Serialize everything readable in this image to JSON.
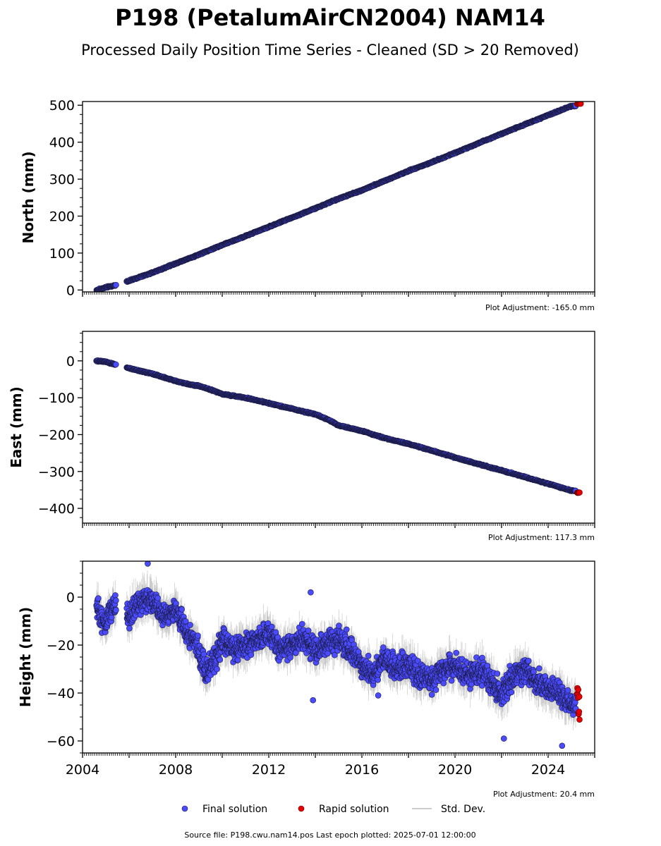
{
  "title": "P198 (PetalumAirCN2004) NAM14",
  "subtitle": "Processed Daily Position Time Series - Cleaned (SD > 20 Removed)",
  "footer": "Source file: P198.cwu.nam14.pos  Last epoch plotted: 2025-07-01 12:00:00",
  "legend": {
    "final_label": "Final solution",
    "rapid_label": "Rapid solution",
    "sd_label": "Std. Dev."
  },
  "colors": {
    "final": "#4a4aff",
    "rapid": "#e60000",
    "std_dev": "#bbbbbb",
    "marker_edge": "#1a1a40"
  },
  "chart_data": [
    {
      "type": "scatter",
      "ylabel": "North (mm)",
      "xlim": [
        2004.0,
        2026.0
      ],
      "ylim": [
        -5,
        510
      ],
      "yticks": [
        0,
        100,
        200,
        300,
        400,
        500
      ],
      "ytick_labels": [
        "0",
        "100",
        "200",
        "300",
        "400",
        "500"
      ],
      "xticks": [
        2004,
        2008,
        2012,
        2016,
        2020,
        2024
      ],
      "xtick_labels": [],
      "plot_adjustment": "Plot Adjustment: -165.0 mm",
      "series": [
        {
          "kind": "final",
          "x": [
            2004.6,
            2004.8,
            2005.0,
            2005.3,
            2006.0,
            2007.0,
            2008.0,
            2009.0,
            2010.0,
            2011.0,
            2012.0,
            2013.0,
            2014.0,
            2015.0,
            2016.0,
            2017.0,
            2018.0,
            2019.0,
            2020.0,
            2021.0,
            2022.0,
            2023.0,
            2024.0,
            2025.0
          ],
          "y": [
            0,
            3,
            7,
            11,
            25,
            47,
            72,
            96,
            122,
            146,
            171,
            196,
            221,
            247,
            270,
            296,
            322,
            346,
            371,
            397,
            423,
            448,
            473,
            498
          ]
        },
        {
          "kind": "rapid",
          "x": [
            2025.25,
            2025.32,
            2025.4
          ],
          "y": [
            503,
            505,
            504
          ]
        }
      ]
    },
    {
      "type": "scatter",
      "ylabel": "East (mm)",
      "xlim": [
        2004.0,
        2026.0
      ],
      "ylim": [
        -440,
        80
      ],
      "yticks": [
        0,
        -100,
        -200,
        -300,
        -400
      ],
      "ytick_labels": [
        "0",
        "−100",
        "−200",
        "−300",
        "−400"
      ],
      "xticks": [
        2004,
        2008,
        2012,
        2016,
        2020,
        2024
      ],
      "xtick_labels": [],
      "plot_adjustment": "Plot Adjustment: 117.3 mm",
      "series": [
        {
          "kind": "final",
          "x": [
            2004.6,
            2005.0,
            2005.3,
            2006.0,
            2007.0,
            2008.0,
            2008.6,
            2009.0,
            2009.6,
            2010.0,
            2011.0,
            2012.0,
            2013.0,
            2014.0,
            2014.5,
            2015.0,
            2016.0,
            2017.0,
            2018.0,
            2019.0,
            2020.0,
            2021.0,
            2022.0,
            2023.0,
            2024.0,
            2025.0
          ],
          "y": [
            0,
            -2,
            -8,
            -20,
            -35,
            -55,
            -64,
            -68,
            -80,
            -90,
            -100,
            -115,
            -130,
            -145,
            -158,
            -175,
            -190,
            -210,
            -225,
            -243,
            -262,
            -280,
            -297,
            -315,
            -333,
            -352
          ]
        },
        {
          "kind": "rapid",
          "x": [
            2025.25,
            2025.35
          ],
          "y": [
            -357,
            -358
          ]
        }
      ]
    },
    {
      "type": "scatter",
      "ylabel": "Height (mm)",
      "xlim": [
        2004.0,
        2026.0
      ],
      "ylim": [
        -65,
        15
      ],
      "yticks": [
        0,
        -20,
        -40,
        -60
      ],
      "ytick_labels": [
        "0",
        "−20",
        "−40",
        "−60"
      ],
      "xticks": [
        2004,
        2008,
        2012,
        2016,
        2020,
        2024
      ],
      "xtick_labels": [
        "2004",
        "2008",
        "2012",
        "2016",
        "2020",
        "2024"
      ],
      "plot_adjustment": "Plot Adjustment: 20.4 mm",
      "series": [
        {
          "kind": "final",
          "x": [
            2004.6,
            2004.8,
            2005.0,
            2005.3,
            2006.0,
            2006.5,
            2007.0,
            2007.5,
            2008.0,
            2008.5,
            2009.0,
            2009.3,
            2009.7,
            2010.0,
            2010.5,
            2011.0,
            2011.5,
            2012.0,
            2012.5,
            2013.0,
            2013.5,
            2014.0,
            2014.5,
            2015.0,
            2015.5,
            2016.0,
            2016.5,
            2017.0,
            2017.5,
            2018.0,
            2018.5,
            2019.0,
            2019.5,
            2020.0,
            2020.5,
            2021.0,
            2021.5,
            2022.0,
            2022.5,
            2023.0,
            2023.5,
            2024.0,
            2024.5,
            2025.0
          ],
          "y": [
            -5,
            -8,
            -12,
            -3,
            -8,
            -2,
            -1,
            -8,
            -5,
            -15,
            -22,
            -32,
            -25,
            -18,
            -22,
            -20,
            -18,
            -15,
            -22,
            -20,
            -17,
            -22,
            -20,
            -18,
            -22,
            -28,
            -33,
            -25,
            -30,
            -28,
            -33,
            -35,
            -30,
            -28,
            -33,
            -30,
            -35,
            -40,
            -33,
            -30,
            -35,
            -38,
            -40,
            -45
          ]
        },
        {
          "kind": "rapid",
          "x": [
            2025.25,
            2025.3,
            2025.35
          ],
          "y": [
            -40,
            -45,
            -48
          ]
        }
      ]
    }
  ]
}
